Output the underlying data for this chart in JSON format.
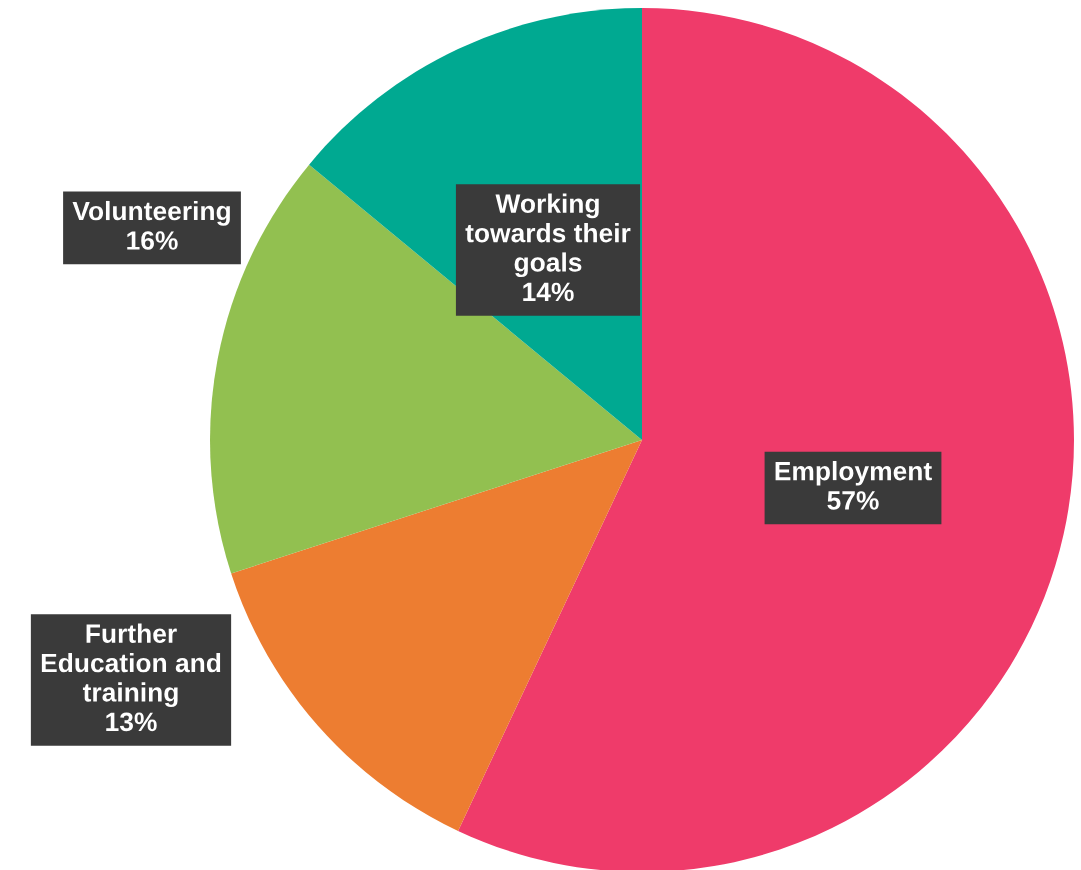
{
  "chart_data": {
    "type": "pie",
    "categories": [
      "Employment",
      "Further\nEducation and\ntraining",
      "Volunteering",
      "Working\ntowards their\ngoals"
    ],
    "values": [
      57,
      13,
      16,
      14
    ],
    "value_labels": [
      "57%",
      "13%",
      "16%",
      "14%"
    ],
    "colors": [
      "#ef3b6a",
      "#ed7d31",
      "#92c050",
      "#00a991"
    ]
  }
}
